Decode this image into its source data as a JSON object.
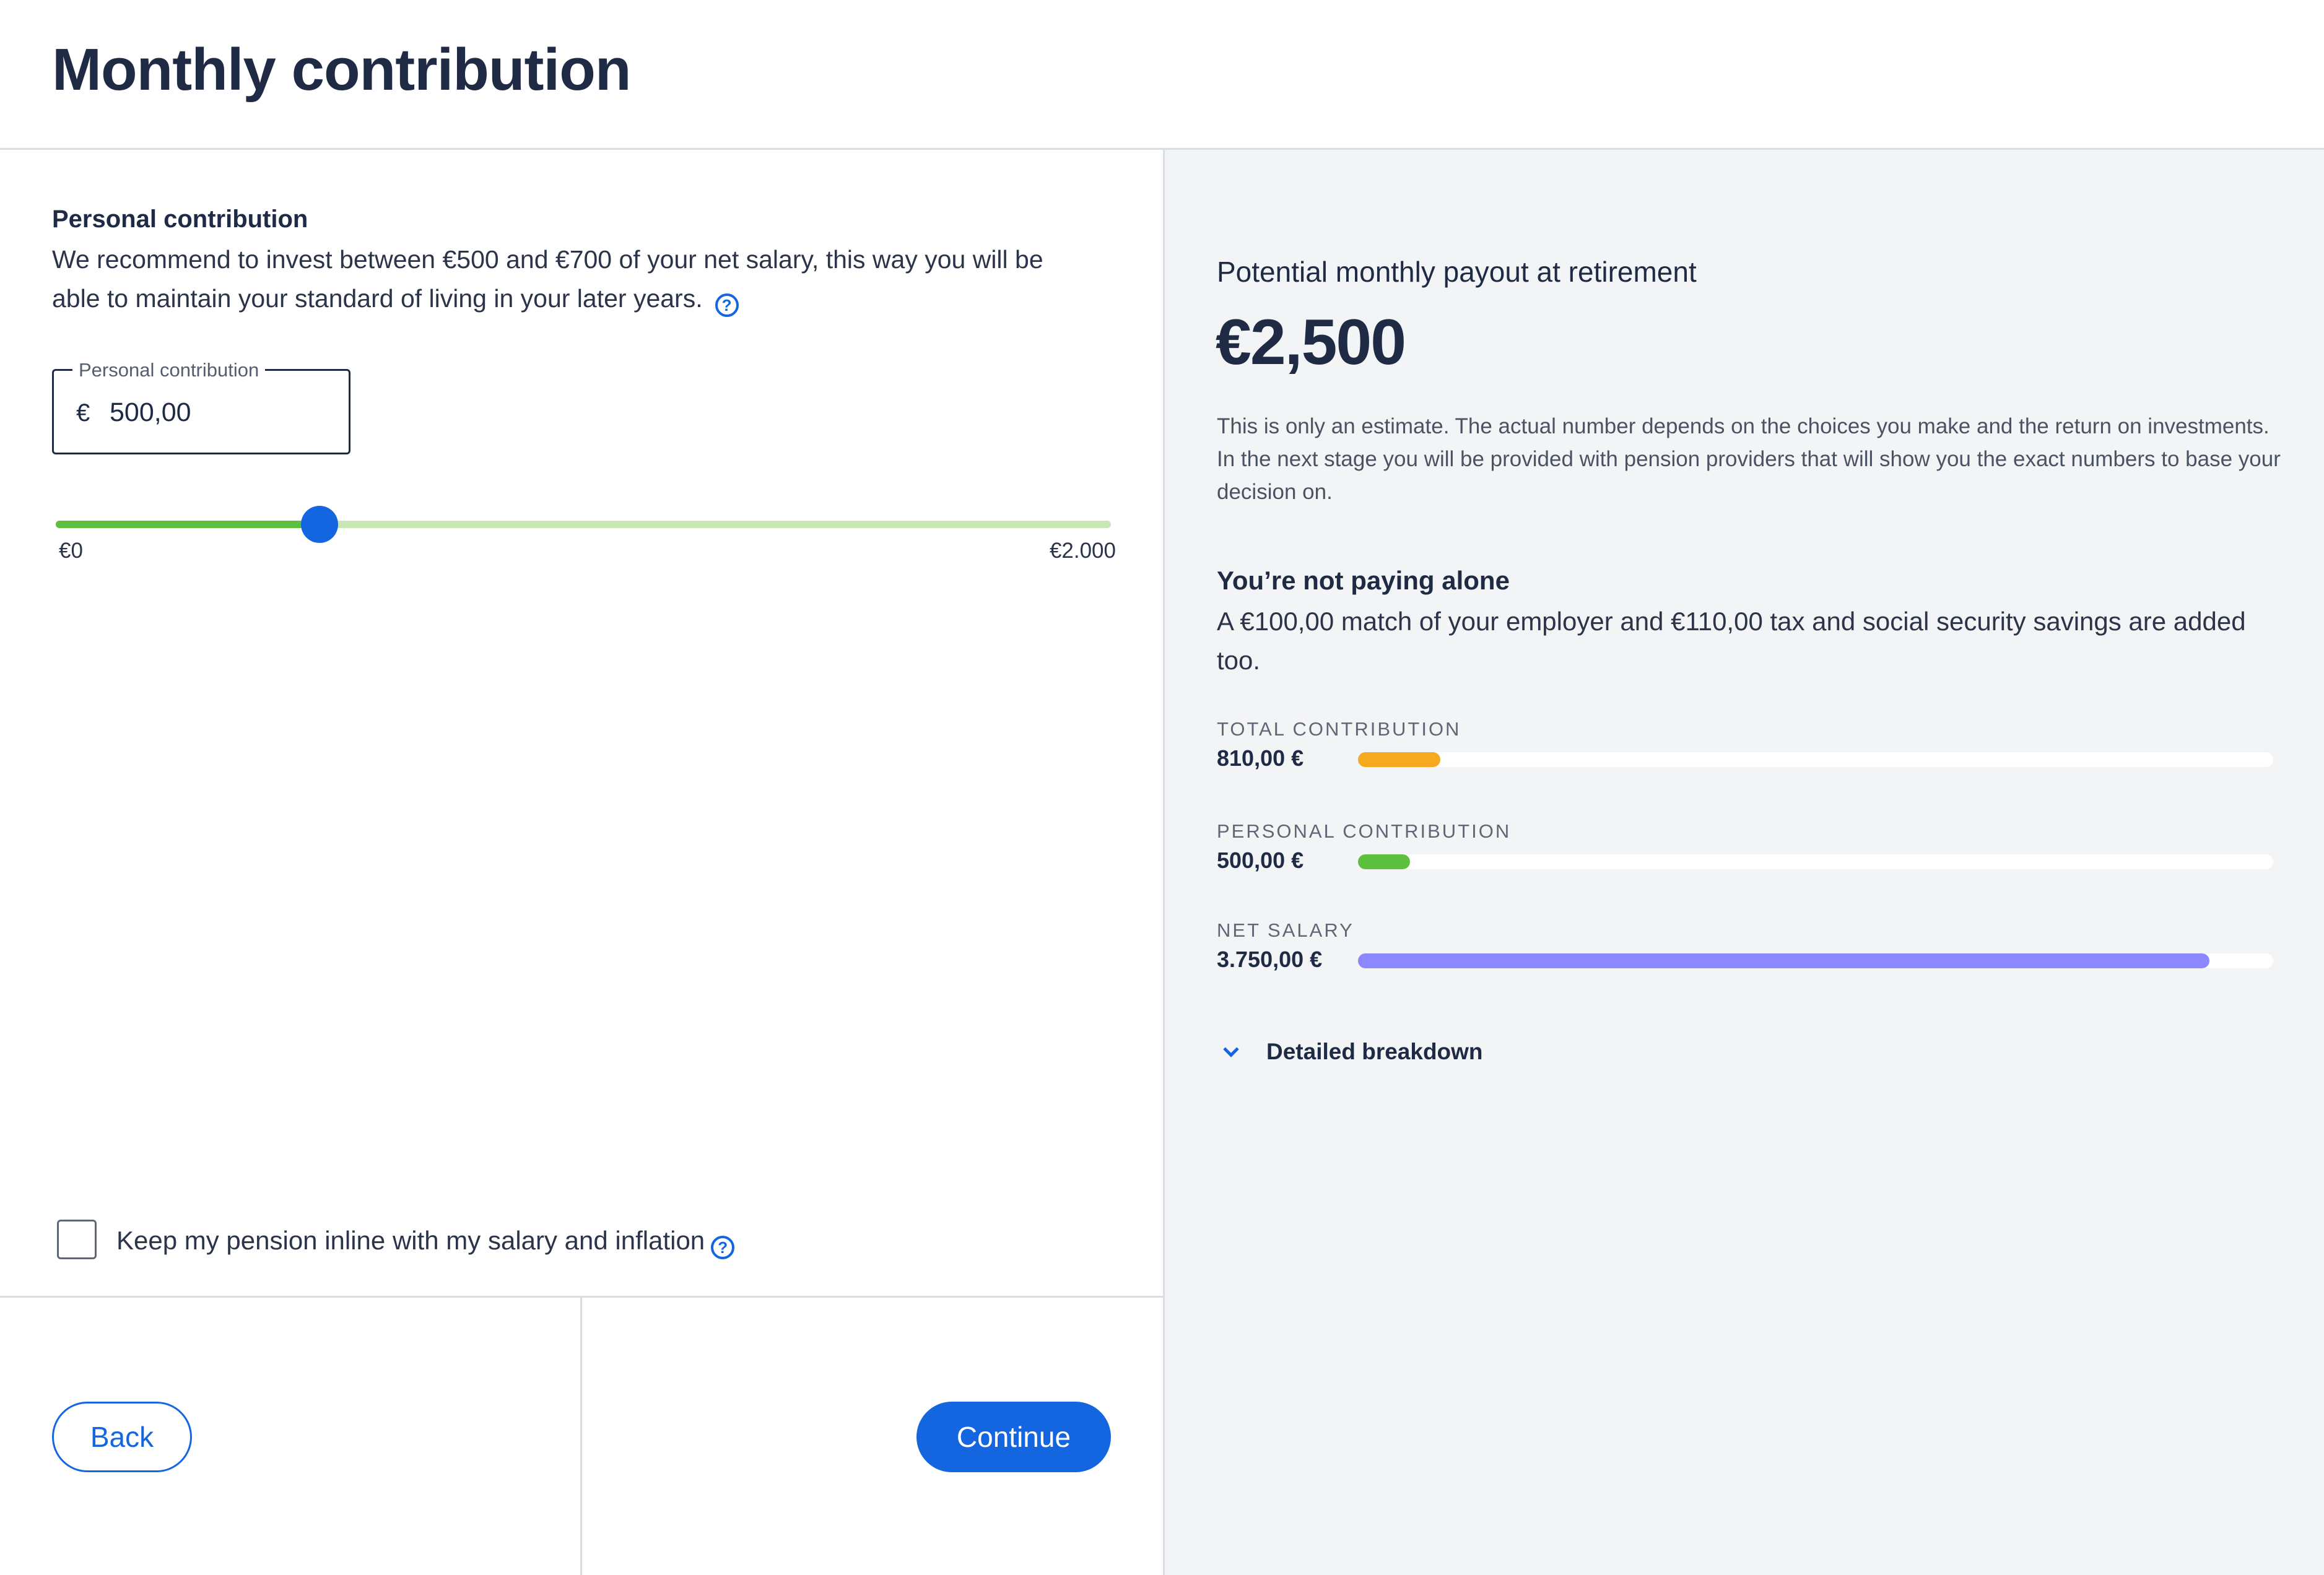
{
  "header": {
    "title": "Monthly contribution"
  },
  "personal": {
    "title": "Personal contribution",
    "description": "We recommend to invest between €500 and €700 of your net salary, this way you will be able to maintain your standard of living in your later years.",
    "help_icon": "question-circle-icon",
    "field_label": "Personal contribution",
    "currency_symbol": "€",
    "field_value": "500,00"
  },
  "slider": {
    "min_label": "€0",
    "max_label": "€2.000",
    "value": 500,
    "min": 0,
    "max": 2000
  },
  "inflation": {
    "label": "Keep my pension inline with my salary and inflation",
    "checked": false,
    "help_icon": "question-circle-icon"
  },
  "footer": {
    "back_label": "Back",
    "continue_label": "Continue"
  },
  "summary": {
    "payout_label": "Potential monthly payout at retirement",
    "payout_value": "€2,500",
    "estimate_text": "This is only an estimate. The actual number depends on the choices you make and the return on investments. In the next stage you will be provided with pension providers that will show you the exact numbers to base your decision on.",
    "alone_title": "You’re not paying alone",
    "alone_text": "A €100,00 match of your employer and €110,00 tax and social security savings are added too.",
    "bars": [
      {
        "label": "TOTAL CONTRIBUTION",
        "value": "810,00 €",
        "fraction": 0.09,
        "color": "#f5a91f"
      },
      {
        "label": "PERSONAL CONTRIBUTION",
        "value": "500,00 €",
        "fraction": 0.057,
        "color": "#5cbf3e"
      },
      {
        "label": "NET SALARY",
        "value": "3.750,00 €",
        "fraction": 0.93,
        "color": "#8b87ff"
      }
    ],
    "breakdown_label": "Detailed breakdown",
    "breakdown_icon": "chevron-down-icon"
  },
  "colors": {
    "accent": "#1466e0",
    "panel_bg": "#f3f4f6",
    "text": "#1f2a44"
  }
}
